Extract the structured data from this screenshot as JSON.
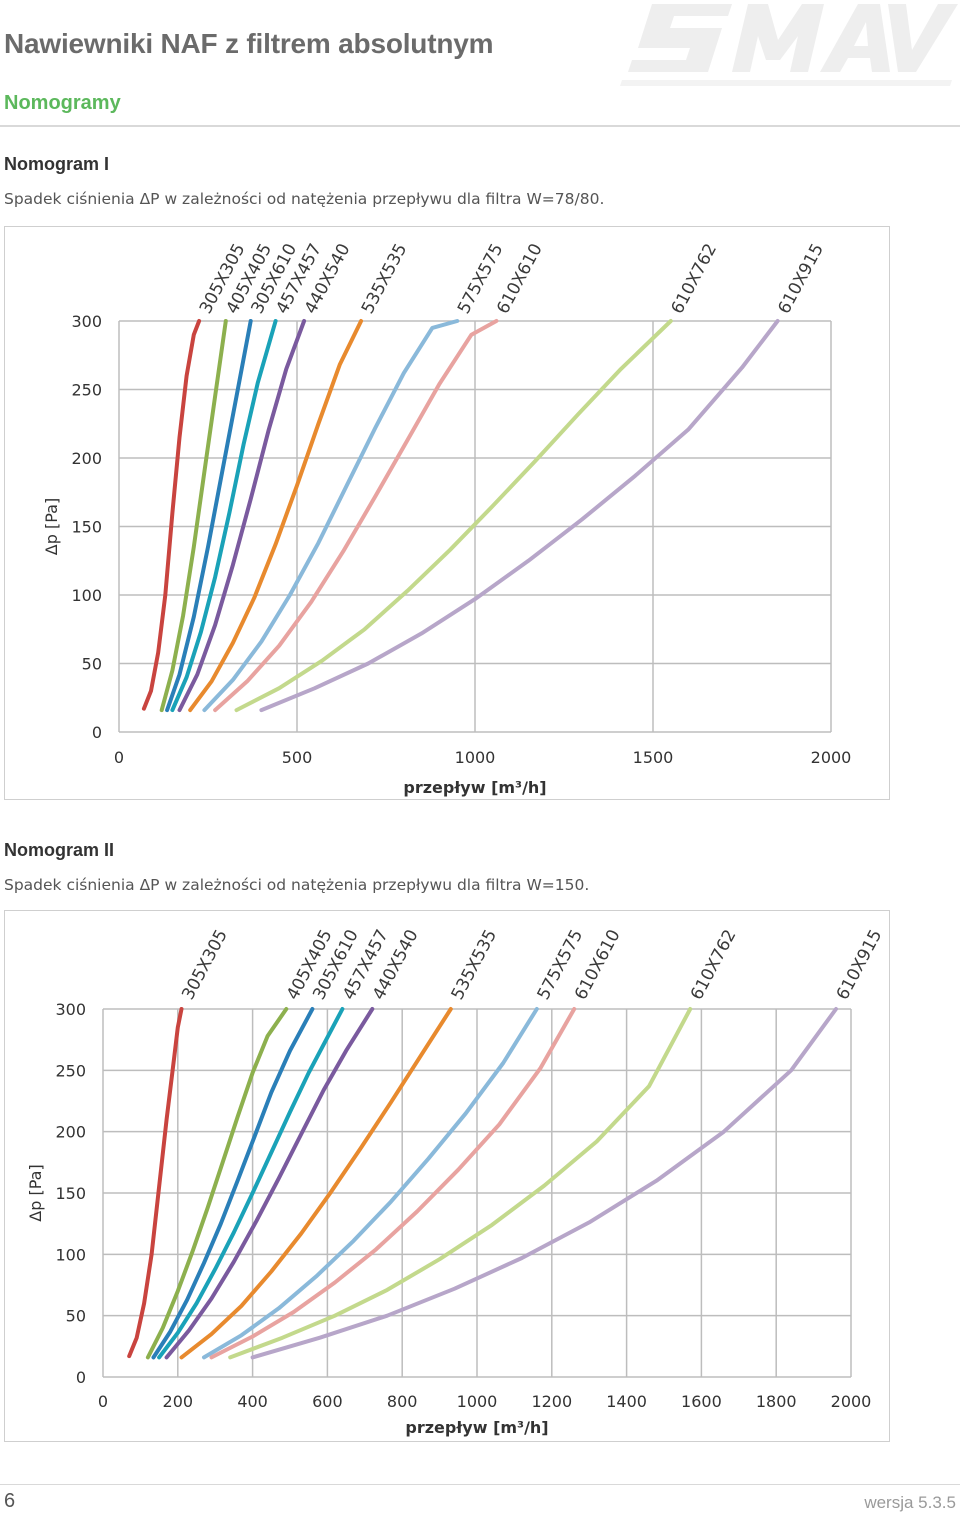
{
  "header": {
    "title": "Nawiewniki NAF z filtrem absolutnym",
    "subtitle": "Nomogramy",
    "logo_text": "SMAV",
    "logo_icon": "smav-logo"
  },
  "colors": {
    "accent_green": "#5cb85c",
    "305X305": "#c9443f",
    "405X405": "#8db04e",
    "305X610": "#2a7fb8",
    "457X457": "#1aa2b8",
    "440X540": "#7a5a9e",
    "535X535": "#e88a2e",
    "575X575": "#8ab9da",
    "610X610": "#e8a3a0",
    "610X762": "#c3d98c",
    "610X915": "#b7a6c9"
  },
  "sections": [
    {
      "title": "Nomogram I",
      "description": "Spadek ciśnienia ΔP w zależności od natężenia przepływu dla filtra W=78/80."
    },
    {
      "title": "Nomogram II",
      "description": "Spadek ciśnienia ΔP w zależności od natężenia przepływu dla filtra W=150."
    }
  ],
  "chart_data": [
    {
      "type": "line",
      "title": "Nomogram I",
      "xlabel": "przepływ [m³/h]",
      "ylabel": "Δp [Pa]",
      "xlim": [
        0,
        2000
      ],
      "ylim": [
        0,
        300
      ],
      "xticks": [
        "0",
        "500",
        "1000",
        "1500",
        "2000"
      ],
      "yticks": [
        "0",
        "50",
        "100",
        "150",
        "200",
        "250",
        "300"
      ],
      "grid": true,
      "series": [
        {
          "name": "305X305",
          "color": "#c9443f",
          "x": [
            70,
            90,
            110,
            130,
            150,
            170,
            190,
            210,
            225
          ],
          "y": [
            17,
            30,
            58,
            100,
            160,
            215,
            260,
            290,
            300
          ]
        },
        {
          "name": "405X405",
          "color": "#8db04e",
          "x": [
            120,
            150,
            180,
            210,
            240,
            270,
            300
          ],
          "y": [
            16,
            45,
            85,
            135,
            190,
            245,
            300
          ]
        },
        {
          "name": "305X610",
          "color": "#2a7fb8",
          "x": [
            135,
            170,
            210,
            250,
            290,
            330,
            370
          ],
          "y": [
            16,
            42,
            84,
            135,
            190,
            245,
            300
          ]
        },
        {
          "name": "457X457",
          "color": "#1aa2b8",
          "x": [
            150,
            190,
            230,
            270,
            310,
            350,
            390,
            440
          ],
          "y": [
            16,
            40,
            73,
            113,
            160,
            210,
            255,
            300
          ]
        },
        {
          "name": "440X540",
          "color": "#7a5a9e",
          "x": [
            170,
            220,
            270,
            320,
            370,
            420,
            470,
            520
          ],
          "y": [
            16,
            42,
            78,
            122,
            170,
            220,
            265,
            300
          ]
        },
        {
          "name": "535X535",
          "color": "#e88a2e",
          "x": [
            200,
            260,
            320,
            380,
            440,
            500,
            560,
            620,
            680
          ],
          "y": [
            16,
            37,
            65,
            98,
            137,
            180,
            225,
            268,
            300
          ]
        },
        {
          "name": "575X575",
          "color": "#8ab9da",
          "x": [
            240,
            320,
            400,
            480,
            560,
            640,
            720,
            800,
            880,
            950
          ],
          "y": [
            16,
            38,
            66,
            100,
            138,
            180,
            222,
            262,
            295,
            300
          ]
        },
        {
          "name": "610X610",
          "color": "#e8a3a0",
          "x": [
            270,
            360,
            450,
            540,
            630,
            720,
            810,
            900,
            990,
            1060
          ],
          "y": [
            16,
            37,
            63,
            95,
            132,
            172,
            213,
            254,
            290,
            300
          ]
        },
        {
          "name": "610X762",
          "color": "#c3d98c",
          "x": [
            330,
            450,
            570,
            690,
            810,
            930,
            1050,
            1170,
            1290,
            1410,
            1550
          ],
          "y": [
            16,
            32,
            52,
            75,
            103,
            133,
            165,
            198,
            232,
            265,
            300
          ]
        },
        {
          "name": "610X915",
          "color": "#b7a6c9",
          "x": [
            400,
            550,
            700,
            850,
            1000,
            1150,
            1300,
            1450,
            1600,
            1750,
            1850
          ],
          "y": [
            16,
            32,
            50,
            72,
            97,
            125,
            155,
            187,
            221,
            266,
            300
          ]
        }
      ]
    },
    {
      "type": "line",
      "title": "Nomogram II",
      "xlabel": "przepływ [m³/h]",
      "ylabel": "Δp [Pa]",
      "xlim": [
        0,
        2000
      ],
      "ylim": [
        0,
        300
      ],
      "xticks": [
        "0",
        "200",
        "400",
        "600",
        "800",
        "1000",
        "1200",
        "1400",
        "1600",
        "1800",
        "2000"
      ],
      "yticks": [
        "0",
        "50",
        "100",
        "150",
        "200",
        "250",
        "300"
      ],
      "grid": true,
      "series": [
        {
          "name": "305X305",
          "color": "#c9443f",
          "x": [
            70,
            90,
            110,
            130,
            150,
            170,
            190,
            200,
            210
          ],
          "y": [
            17,
            32,
            60,
            100,
            155,
            210,
            260,
            285,
            300
          ]
        },
        {
          "name": "405X405",
          "color": "#8db04e",
          "x": [
            120,
            160,
            200,
            240,
            280,
            320,
            360,
            400,
            440,
            490
          ],
          "y": [
            16,
            40,
            70,
            103,
            138,
            175,
            212,
            248,
            278,
            300
          ]
        },
        {
          "name": "305X610",
          "color": "#2a7fb8",
          "x": [
            135,
            180,
            225,
            270,
            315,
            360,
            405,
            450,
            500,
            560
          ],
          "y": [
            16,
            37,
            63,
            93,
            125,
            160,
            196,
            232,
            266,
            300
          ]
        },
        {
          "name": "457X457",
          "color": "#1aa2b8",
          "x": [
            150,
            200,
            250,
            300,
            350,
            400,
            450,
            500,
            550,
            640
          ],
          "y": [
            16,
            36,
            60,
            88,
            118,
            150,
            183,
            216,
            248,
            300
          ]
        },
        {
          "name": "440X540",
          "color": "#7a5a9e",
          "x": [
            170,
            230,
            290,
            350,
            410,
            470,
            530,
            590,
            650,
            720
          ],
          "y": [
            16,
            38,
            64,
            94,
            127,
            162,
            198,
            234,
            266,
            300
          ]
        },
        {
          "name": "535X535",
          "color": "#e88a2e",
          "x": [
            210,
            290,
            370,
            450,
            530,
            610,
            690,
            770,
            850,
            930
          ],
          "y": [
            16,
            35,
            58,
            86,
            117,
            151,
            187,
            224,
            262,
            300
          ]
        },
        {
          "name": "575X575",
          "color": "#8ab9da",
          "x": [
            270,
            370,
            470,
            570,
            670,
            770,
            870,
            970,
            1070,
            1160
          ],
          "y": [
            16,
            34,
            56,
            82,
            111,
            143,
            178,
            215,
            256,
            300
          ]
        },
        {
          "name": "610X610",
          "color": "#e8a3a0",
          "x": [
            290,
            400,
            510,
            620,
            730,
            840,
            950,
            1060,
            1170,
            1260
          ],
          "y": [
            16,
            33,
            53,
            77,
            104,
            135,
            169,
            206,
            252,
            300
          ]
        },
        {
          "name": "610X762",
          "color": "#c3d98c",
          "x": [
            340,
            480,
            620,
            760,
            900,
            1040,
            1180,
            1320,
            1460,
            1570
          ],
          "y": [
            16,
            32,
            50,
            71,
            96,
            124,
            156,
            192,
            237,
            300
          ]
        },
        {
          "name": "610X915",
          "color": "#b7a6c9",
          "x": [
            400,
            580,
            760,
            940,
            1120,
            1300,
            1480,
            1660,
            1840,
            1960
          ],
          "y": [
            16,
            32,
            50,
            72,
            97,
            126,
            160,
            200,
            250,
            300
          ]
        }
      ]
    }
  ],
  "footer": {
    "page_number": "6",
    "version": "wersja 5.3.5"
  }
}
